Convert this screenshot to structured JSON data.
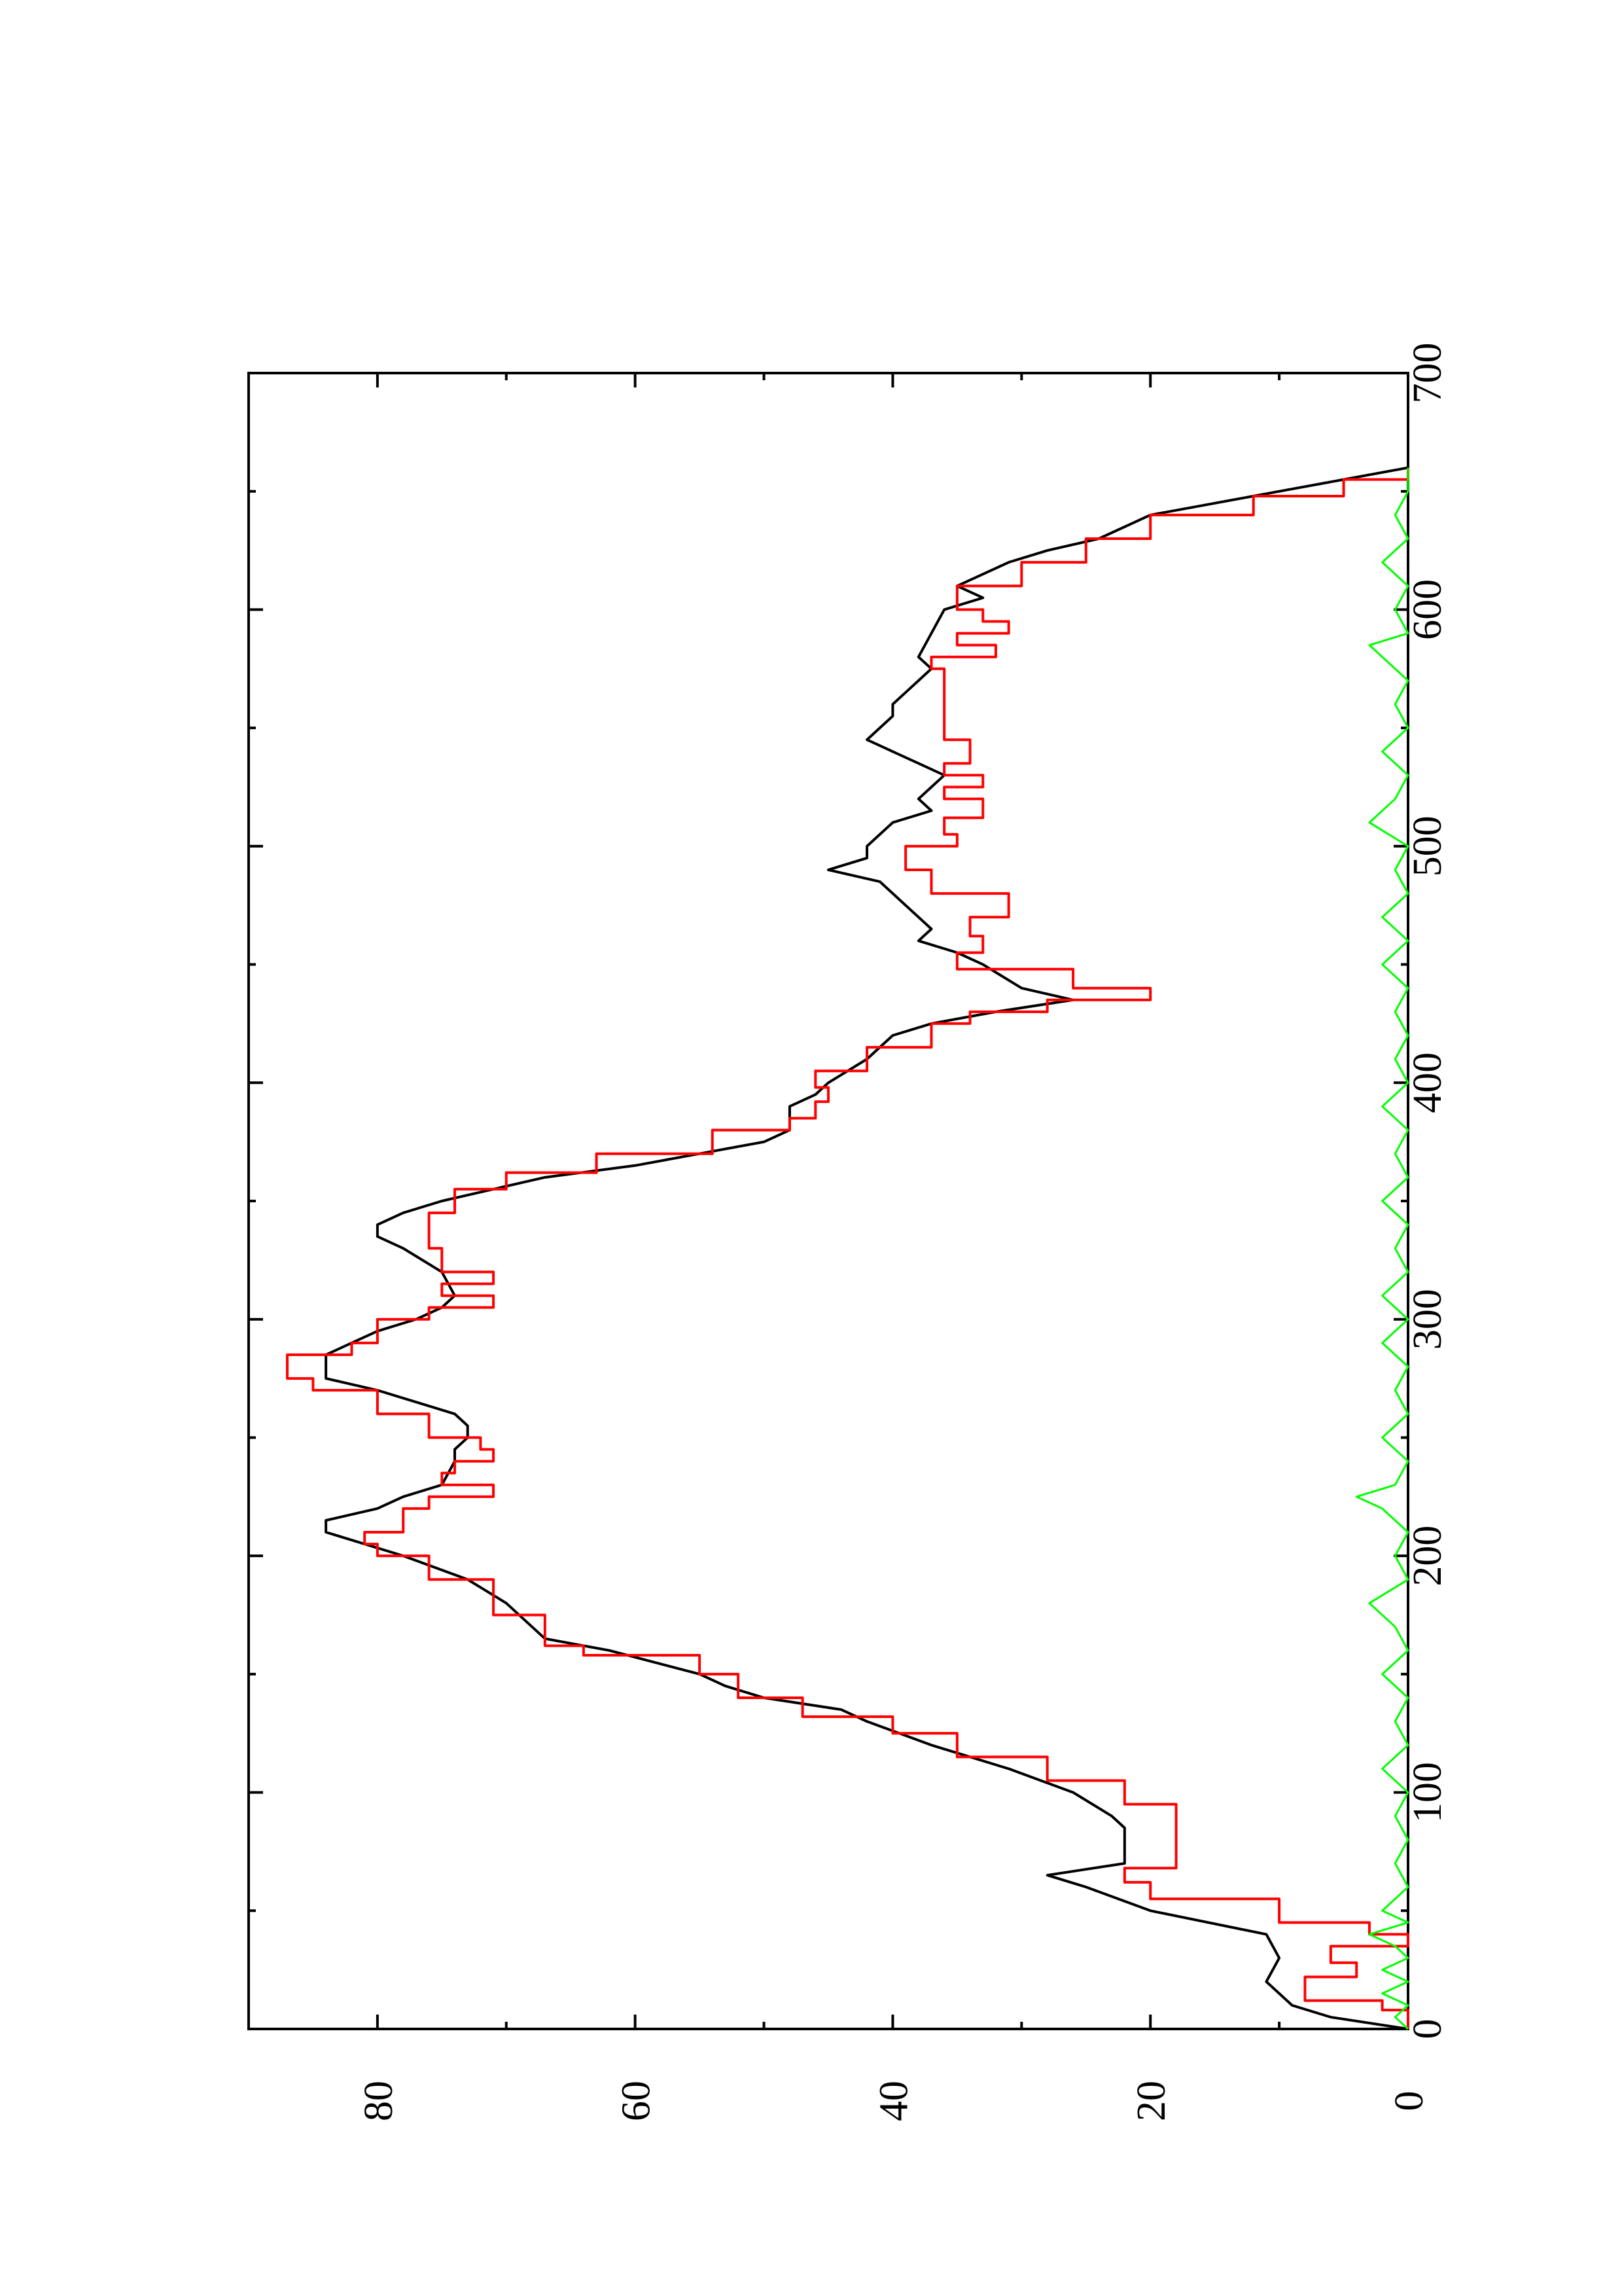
{
  "chart_data": {
    "type": "line",
    "orientation": "rotated-90-ccw",
    "title": "",
    "xlabel": "",
    "ylabel": "",
    "xlim": [
      0,
      700
    ],
    "ylim": [
      0,
      90
    ],
    "x_ticks": [
      0,
      100,
      200,
      300,
      400,
      500,
      600,
      700
    ],
    "y_ticks": [
      0,
      20,
      40,
      60,
      80
    ],
    "grid": false,
    "legend": "none",
    "series": [
      {
        "color": "#000000",
        "style": "smooth",
        "points": [
          [
            0,
            0
          ],
          [
            5,
            6
          ],
          [
            10,
            9
          ],
          [
            20,
            11
          ],
          [
            30,
            10
          ],
          [
            40,
            11
          ],
          [
            50,
            20
          ],
          [
            60,
            25
          ],
          [
            65,
            28
          ],
          [
            70,
            22
          ],
          [
            85,
            22
          ],
          [
            90,
            23
          ],
          [
            100,
            26
          ],
          [
            110,
            31
          ],
          [
            120,
            37
          ],
          [
            130,
            42
          ],
          [
            135,
            44
          ],
          [
            140,
            50
          ],
          [
            145,
            53
          ],
          [
            150,
            55
          ],
          [
            160,
            62
          ],
          [
            165,
            67
          ],
          [
            170,
            68
          ],
          [
            180,
            70
          ],
          [
            190,
            73
          ],
          [
            200,
            78
          ],
          [
            210,
            84
          ],
          [
            215,
            84
          ],
          [
            220,
            80
          ],
          [
            225,
            78
          ],
          [
            230,
            75
          ],
          [
            240,
            74
          ],
          [
            245,
            74
          ],
          [
            250,
            73
          ],
          [
            255,
            73
          ],
          [
            260,
            74
          ],
          [
            265,
            77
          ],
          [
            270,
            80
          ],
          [
            275,
            84
          ],
          [
            285,
            84
          ],
          [
            290,
            82
          ],
          [
            295,
            80
          ],
          [
            300,
            77
          ],
          [
            305,
            75
          ],
          [
            310,
            74
          ],
          [
            320,
            75
          ],
          [
            330,
            78
          ],
          [
            335,
            80
          ],
          [
            340,
            80
          ],
          [
            345,
            78
          ],
          [
            350,
            75
          ],
          [
            360,
            67
          ],
          [
            365,
            60
          ],
          [
            370,
            55
          ],
          [
            375,
            50
          ],
          [
            380,
            48
          ],
          [
            390,
            48
          ],
          [
            395,
            46
          ],
          [
            400,
            45
          ],
          [
            410,
            42
          ],
          [
            420,
            40
          ],
          [
            425,
            37
          ],
          [
            430,
            32
          ],
          [
            435,
            26
          ],
          [
            440,
            30
          ],
          [
            450,
            33
          ],
          [
            455,
            35
          ],
          [
            460,
            38
          ],
          [
            465,
            37
          ],
          [
            470,
            38
          ],
          [
            480,
            40
          ],
          [
            485,
            41
          ],
          [
            490,
            45
          ],
          [
            495,
            42
          ],
          [
            500,
            42
          ],
          [
            510,
            40
          ],
          [
            515,
            37
          ],
          [
            520,
            38
          ],
          [
            525,
            37
          ],
          [
            530,
            36
          ],
          [
            535,
            38
          ],
          [
            540,
            40
          ],
          [
            545,
            42
          ],
          [
            550,
            41
          ],
          [
            555,
            40
          ],
          [
            560,
            40
          ],
          [
            565,
            39
          ],
          [
            570,
            38
          ],
          [
            575,
            37
          ],
          [
            580,
            38
          ],
          [
            590,
            37
          ],
          [
            600,
            36
          ],
          [
            605,
            33
          ],
          [
            610,
            35
          ],
          [
            620,
            31
          ],
          [
            625,
            28
          ],
          [
            630,
            24
          ],
          [
            640,
            20
          ],
          [
            645,
            15
          ],
          [
            650,
            10
          ],
          [
            655,
            5
          ],
          [
            660,
            0
          ]
        ]
      },
      {
        "color": "#ff0000",
        "style": "step",
        "points": [
          [
            0,
            0
          ],
          [
            8,
            2
          ],
          [
            12,
            8
          ],
          [
            22,
            4
          ],
          [
            28,
            6
          ],
          [
            35,
            0
          ],
          [
            40,
            3
          ],
          [
            45,
            10
          ],
          [
            55,
            20
          ],
          [
            62,
            22
          ],
          [
            68,
            18
          ],
          [
            90,
            18
          ],
          [
            95,
            22
          ],
          [
            105,
            28
          ],
          [
            115,
            35
          ],
          [
            125,
            40
          ],
          [
            132,
            47
          ],
          [
            140,
            52
          ],
          [
            150,
            55
          ],
          [
            158,
            64
          ],
          [
            162,
            67
          ],
          [
            175,
            71
          ],
          [
            190,
            76
          ],
          [
            200,
            80
          ],
          [
            205,
            81
          ],
          [
            210,
            78
          ],
          [
            220,
            76
          ],
          [
            225,
            71
          ],
          [
            230,
            75
          ],
          [
            235,
            74
          ],
          [
            240,
            71
          ],
          [
            245,
            72
          ],
          [
            250,
            76
          ],
          [
            260,
            80
          ],
          [
            270,
            85
          ],
          [
            275,
            87
          ],
          [
            285,
            82
          ],
          [
            290,
            80
          ],
          [
            300,
            76
          ],
          [
            305,
            71
          ],
          [
            310,
            75
          ],
          [
            315,
            71
          ],
          [
            320,
            75
          ],
          [
            330,
            76
          ],
          [
            340,
            76
          ],
          [
            345,
            74
          ],
          [
            355,
            70
          ],
          [
            362,
            63
          ],
          [
            370,
            54
          ],
          [
            380,
            48
          ],
          [
            385,
            46
          ],
          [
            392,
            45
          ],
          [
            398,
            46
          ],
          [
            405,
            42
          ],
          [
            415,
            37
          ],
          [
            425,
            34
          ],
          [
            430,
            28
          ],
          [
            435,
            20
          ],
          [
            440,
            26
          ],
          [
            448,
            35
          ],
          [
            455,
            33
          ],
          [
            462,
            34
          ],
          [
            470,
            31
          ],
          [
            480,
            37
          ],
          [
            490,
            39
          ],
          [
            500,
            35
          ],
          [
            505,
            36
          ],
          [
            512,
            33
          ],
          [
            520,
            36
          ],
          [
            525,
            33
          ],
          [
            530,
            36
          ],
          [
            535,
            34
          ],
          [
            545,
            36
          ],
          [
            560,
            36
          ],
          [
            575,
            37
          ],
          [
            580,
            32
          ],
          [
            585,
            35
          ],
          [
            590,
            31
          ],
          [
            595,
            33
          ],
          [
            600,
            35
          ],
          [
            610,
            30
          ],
          [
            620,
            25
          ],
          [
            630,
            20
          ],
          [
            640,
            12
          ],
          [
            648,
            5
          ],
          [
            655,
            0
          ],
          [
            660,
            0
          ]
        ]
      },
      {
        "color": "#00ff00",
        "style": "noise",
        "points": [
          [
            0,
            0
          ],
          [
            5,
            1
          ],
          [
            10,
            0
          ],
          [
            15,
            2
          ],
          [
            20,
            0
          ],
          [
            25,
            2
          ],
          [
            30,
            0
          ],
          [
            35,
            1
          ],
          [
            40,
            3
          ],
          [
            45,
            0
          ],
          [
            50,
            2
          ],
          [
            55,
            1
          ],
          [
            60,
            0
          ],
          [
            70,
            1
          ],
          [
            80,
            0
          ],
          [
            90,
            1
          ],
          [
            100,
            0
          ],
          [
            110,
            2
          ],
          [
            120,
            0
          ],
          [
            130,
            1
          ],
          [
            140,
            0
          ],
          [
            150,
            2
          ],
          [
            160,
            0
          ],
          [
            170,
            1
          ],
          [
            180,
            3
          ],
          [
            190,
            0
          ],
          [
            200,
            1
          ],
          [
            210,
            0
          ],
          [
            220,
            2
          ],
          [
            225,
            4
          ],
          [
            230,
            1
          ],
          [
            240,
            0
          ],
          [
            250,
            2
          ],
          [
            260,
            0
          ],
          [
            270,
            1
          ],
          [
            280,
            0
          ],
          [
            290,
            2
          ],
          [
            300,
            0
          ],
          [
            310,
            2
          ],
          [
            320,
            0
          ],
          [
            330,
            1
          ],
          [
            340,
            0
          ],
          [
            350,
            2
          ],
          [
            360,
            0
          ],
          [
            370,
            1
          ],
          [
            380,
            0
          ],
          [
            390,
            2
          ],
          [
            400,
            0
          ],
          [
            410,
            1
          ],
          [
            420,
            0
          ],
          [
            430,
            1
          ],
          [
            440,
            0
          ],
          [
            450,
            2
          ],
          [
            460,
            0
          ],
          [
            470,
            2
          ],
          [
            480,
            0
          ],
          [
            490,
            1
          ],
          [
            500,
            0
          ],
          [
            510,
            3
          ],
          [
            520,
            1
          ],
          [
            530,
            0
          ],
          [
            540,
            2
          ],
          [
            550,
            0
          ],
          [
            560,
            1
          ],
          [
            570,
            0
          ],
          [
            580,
            2
          ],
          [
            585,
            3
          ],
          [
            590,
            0
          ],
          [
            600,
            1
          ],
          [
            610,
            0
          ],
          [
            620,
            2
          ],
          [
            630,
            0
          ],
          [
            640,
            1
          ],
          [
            650,
            0
          ],
          [
            660,
            0
          ]
        ]
      }
    ]
  }
}
